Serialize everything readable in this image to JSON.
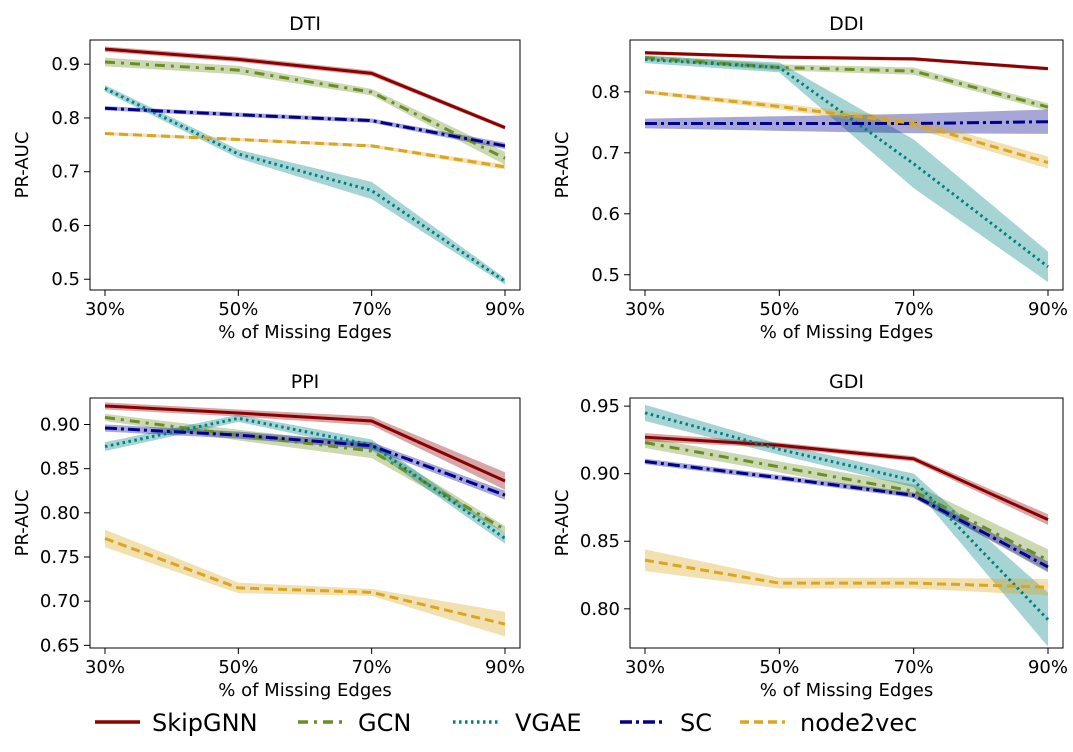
{
  "legend": [
    {
      "name": "SkipGNN",
      "color": "#8b0000",
      "dash": "solid"
    },
    {
      "name": "GCN",
      "color": "#6b8e23",
      "dash": "dashdot"
    },
    {
      "name": "VGAE",
      "color": "#008080",
      "dash": "dotted"
    },
    {
      "name": "SC",
      "color": "#00008b",
      "dash": "dashdotdense"
    },
    {
      "name": "node2vec",
      "color": "#daa520",
      "dash": "dashed"
    }
  ],
  "chart_data": [
    {
      "type": "line",
      "title": "DTI",
      "xlabel": "% of Missing Edges",
      "ylabel": "PR-AUC",
      "categories": [
        "30%",
        "50%",
        "70%",
        "90%"
      ],
      "ylim": [
        0.48,
        0.945
      ],
      "yticks": [
        0.5,
        0.6,
        0.7,
        0.8,
        0.9
      ],
      "ytick_labels": [
        "0.5",
        "0.6",
        "0.7",
        "0.8",
        "0.9"
      ],
      "series": [
        {
          "name": "SkipGNN",
          "values": [
            0.928,
            0.909,
            0.883,
            0.782
          ],
          "band": [
            0.005,
            0.005,
            0.005,
            0.004
          ]
        },
        {
          "name": "GCN",
          "values": [
            0.904,
            0.889,
            0.848,
            0.725
          ],
          "band": [
            0.008,
            0.008,
            0.006,
            0.012
          ]
        },
        {
          "name": "VGAE",
          "values": [
            0.855,
            0.733,
            0.665,
            0.496
          ],
          "band": [
            0.006,
            0.008,
            0.016,
            0.006
          ]
        },
        {
          "name": "SC",
          "values": [
            0.818,
            0.806,
            0.795,
            0.748
          ],
          "band": [
            0.004,
            0.004,
            0.004,
            0.006
          ]
        },
        {
          "name": "node2vec",
          "values": [
            0.771,
            0.76,
            0.748,
            0.709
          ],
          "band": [
            0.003,
            0.003,
            0.003,
            0.005
          ]
        }
      ]
    },
    {
      "type": "line",
      "title": "DDI",
      "xlabel": "% of Missing Edges",
      "ylabel": "PR-AUC",
      "categories": [
        "30%",
        "50%",
        "70%",
        "90%"
      ],
      "ylim": [
        0.475,
        0.885
      ],
      "yticks": [
        0.5,
        0.6,
        0.7,
        0.8
      ],
      "ytick_labels": [
        "0.5",
        "0.6",
        "0.7",
        "0.8"
      ],
      "series": [
        {
          "name": "SkipGNN",
          "values": [
            0.864,
            0.857,
            0.854,
            0.838
          ],
          "band": [
            0.003,
            0.003,
            0.003,
            0.003
          ]
        },
        {
          "name": "GCN",
          "values": [
            0.856,
            0.84,
            0.834,
            0.775
          ],
          "band": [
            0.004,
            0.005,
            0.006,
            0.006
          ]
        },
        {
          "name": "VGAE",
          "values": [
            0.853,
            0.84,
            0.682,
            0.513
          ],
          "band": [
            0.006,
            0.008,
            0.04,
            0.025
          ]
        },
        {
          "name": "SC",
          "values": [
            0.748,
            0.748,
            0.748,
            0.751
          ],
          "band": [
            0.008,
            0.012,
            0.016,
            0.02
          ]
        },
        {
          "name": "node2vec",
          "values": [
            0.8,
            0.776,
            0.748,
            0.684
          ],
          "band": [
            0.003,
            0.005,
            0.008,
            0.01
          ]
        }
      ]
    },
    {
      "type": "line",
      "title": "PPI",
      "xlabel": "% of Missing Edges",
      "ylabel": "PR-AUC",
      "categories": [
        "30%",
        "50%",
        "70%",
        "90%"
      ],
      "ylim": [
        0.647,
        0.93
      ],
      "yticks": [
        0.65,
        0.7,
        0.75,
        0.8,
        0.85,
        0.9
      ],
      "ytick_labels": [
        "0.65",
        "0.70",
        "0.75",
        "0.80",
        "0.85",
        "0.90"
      ],
      "series": [
        {
          "name": "SkipGNN",
          "values": [
            0.921,
            0.913,
            0.904,
            0.836
          ],
          "band": [
            0.004,
            0.004,
            0.005,
            0.01
          ]
        },
        {
          "name": "GCN",
          "values": [
            0.908,
            0.888,
            0.87,
            0.781
          ],
          "band": [
            0.004,
            0.006,
            0.008,
            0.004
          ]
        },
        {
          "name": "VGAE",
          "values": [
            0.875,
            0.907,
            0.877,
            0.771
          ],
          "band": [
            0.005,
            0.004,
            0.006,
            0.006
          ]
        },
        {
          "name": "SC",
          "values": [
            0.896,
            0.888,
            0.876,
            0.82
          ],
          "band": [
            0.004,
            0.004,
            0.004,
            0.005
          ]
        },
        {
          "name": "node2vec",
          "values": [
            0.771,
            0.715,
            0.71,
            0.674
          ],
          "band": [
            0.01,
            0.006,
            0.004,
            0.014
          ]
        }
      ]
    },
    {
      "type": "line",
      "title": "GDI",
      "xlabel": "% of Missing Edges",
      "ylabel": "PR-AUC",
      "categories": [
        "30%",
        "50%",
        "70%",
        "90%"
      ],
      "ylim": [
        0.771,
        0.956
      ],
      "yticks": [
        0.8,
        0.85,
        0.9,
        0.95
      ],
      "ytick_labels": [
        "0.80",
        "0.85",
        "0.90",
        "0.95"
      ],
      "series": [
        {
          "name": "SkipGNN",
          "values": [
            0.927,
            0.921,
            0.911,
            0.866
          ],
          "band": [
            0.003,
            0.002,
            0.002,
            0.004
          ]
        },
        {
          "name": "GCN",
          "values": [
            0.923,
            0.905,
            0.887,
            0.836
          ],
          "band": [
            0.004,
            0.004,
            0.005,
            0.008
          ]
        },
        {
          "name": "VGAE",
          "values": [
            0.945,
            0.918,
            0.895,
            0.792
          ],
          "band": [
            0.006,
            0.004,
            0.005,
            0.02
          ]
        },
        {
          "name": "SC",
          "values": [
            0.909,
            0.897,
            0.884,
            0.831
          ],
          "band": [
            0.002,
            0.002,
            0.002,
            0.004
          ]
        },
        {
          "name": "node2vec",
          "values": [
            0.836,
            0.819,
            0.819,
            0.816
          ],
          "band": [
            0.008,
            0.004,
            0.004,
            0.006
          ]
        }
      ]
    }
  ]
}
